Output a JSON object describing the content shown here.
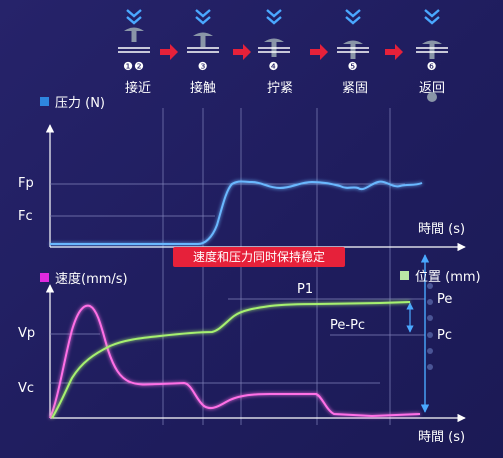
{
  "steps": [
    {
      "num": "❶❷",
      "label": "接近"
    },
    {
      "num": "❸",
      "label": "接触"
    },
    {
      "num": "❹",
      "label": "拧紧"
    },
    {
      "num": "❺",
      "label": "紧固"
    },
    {
      "num": "❻",
      "label": "返回"
    }
  ],
  "top_chart": {
    "legend": "压力 (N)",
    "legend_color": "#2e86de",
    "y_labels": {
      "fp": "Fp",
      "fc": "Fc"
    },
    "x_label": "時間 (s)",
    "line_color": "#4aa8ff"
  },
  "banner": "速度和压力同时保持稳定",
  "bottom_chart": {
    "legend_left": "速度(mm/s)",
    "legend_left_color": "#e02adf",
    "legend_right": "位置 (mm)",
    "legend_right_color": "#b9e6a6",
    "y_labels": {
      "vp": "Vp",
      "vc": "Vc"
    },
    "x_label": "時間 (s)",
    "annotations": {
      "p1": "P1",
      "pe_pc": "Pe-Pc",
      "pe": "Pe",
      "pc": "Pc"
    },
    "speed_color": "#ff66e0",
    "position_color": "#a6f070"
  },
  "colors": {
    "arrow": "#e6213a",
    "chevron": "#4aa8ff",
    "tool": "#8a96a8",
    "grid": "#7b7db5",
    "axis": "#ffffff"
  }
}
